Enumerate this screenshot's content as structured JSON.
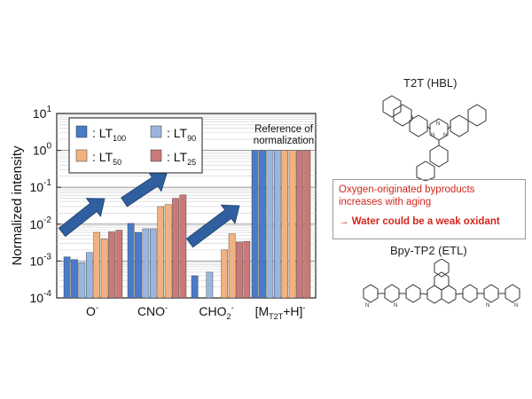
{
  "chart_data": {
    "type": "bar",
    "ylabel": "Normalized intensity",
    "yscale": "log",
    "ylim": [
      0.0001,
      10
    ],
    "y_tick_exponents": [
      1,
      0,
      -1,
      -2,
      -3,
      -4
    ],
    "y_tick_base": "10",
    "categories": [
      {
        "main": "O",
        "sup": "-",
        "sub": ""
      },
      {
        "main": "CNO",
        "sup": "-",
        "sub": ""
      },
      {
        "main": "CHO",
        "sup": "-",
        "sub": "2"
      },
      {
        "main": "[M",
        "sub": "T2T",
        "tail": "+H]",
        "sup": "-"
      }
    ],
    "series": [
      {
        "name": {
          "main": "LT",
          "sub": "100"
        },
        "color": "#4a7bc8",
        "values": [
          0.0013,
          0.0105,
          0.0004,
          1.0
        ]
      },
      {
        "name": {
          "main": "LT",
          "sub": "90"
        },
        "color": "#9bb6dc",
        "values": [
          0.0011,
          0.006,
          null,
          1.0
        ]
      },
      {
        "name": {
          "main": "LT",
          "sub": "50"
        },
        "color": "#f2b27e",
        "values": [
          0.006,
          0.03,
          0.0055,
          1.0
        ]
      },
      {
        "name": {
          "main": "LT",
          "sub": "25"
        },
        "color": "#c87978",
        "values": [
          0.0065,
          0.06,
          0.0033,
          1.0
        ]
      }
    ],
    "bar_values": [
      [
        0.0013,
        0.0011,
        0.0009,
        0.0017,
        0.006,
        0.004,
        0.0062,
        0.0068
      ],
      [
        0.0105,
        0.006,
        0.0075,
        0.0075,
        0.03,
        0.034,
        0.05,
        0.062
      ],
      [
        0.0004,
        null,
        0.0005,
        null,
        0.002,
        0.0055,
        0.0033,
        0.0034
      ],
      [
        1.0,
        1.0,
        1.0,
        1.0,
        1.0,
        1.0,
        1.0,
        1.0
      ]
    ],
    "bar_colors": [
      "#4a7bc8",
      "#4a7bc8",
      "#9bb6dc",
      "#9bb6dc",
      "#f2b27e",
      "#f2b27e",
      "#c87978",
      "#c87978"
    ],
    "legend_placement": "top-left",
    "legend_order": [
      0,
      2,
      1,
      3
    ],
    "annotation": {
      "line1": "Reference of",
      "line2": "normalization"
    },
    "trend_arrows": 3
  },
  "molecules": {
    "t2t_title": "T2T (HBL)",
    "bpy_title": "Bpy-TP2 (ETL)"
  },
  "callout": {
    "line1": "Oxygen-originated byproducts",
    "line1b": "increases with aging",
    "line2": "→ Water could be a weak oxidant",
    "border_color": "#9a9a9a",
    "text_color": "#d0281e"
  }
}
